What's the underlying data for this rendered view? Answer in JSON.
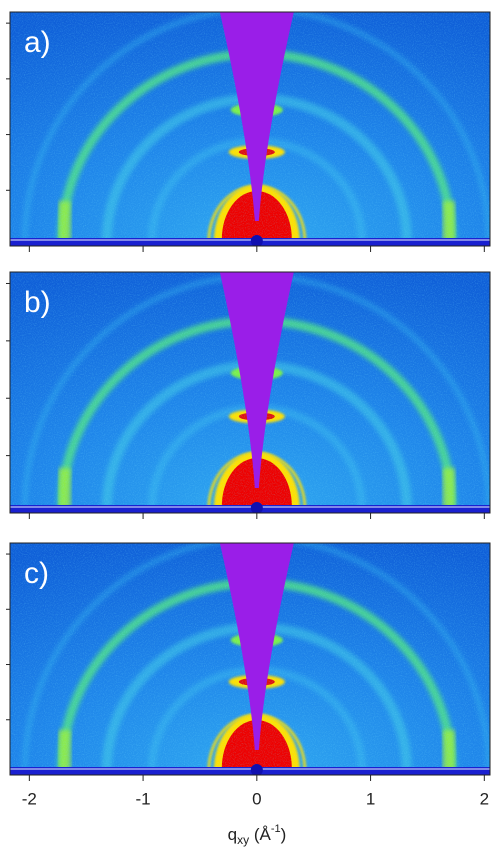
{
  "chart_data": {
    "type": "image",
    "panels": [
      "a)",
      "b)",
      "c)"
    ],
    "xlim": [
      -2.17,
      2.05
    ],
    "xticks": [
      -2,
      -1,
      0,
      1,
      2
    ],
    "xlabel": {
      "base": "q",
      "sub": "xy",
      "unit": " (Å",
      "sup": "-1",
      "close": ")"
    }
  }
}
